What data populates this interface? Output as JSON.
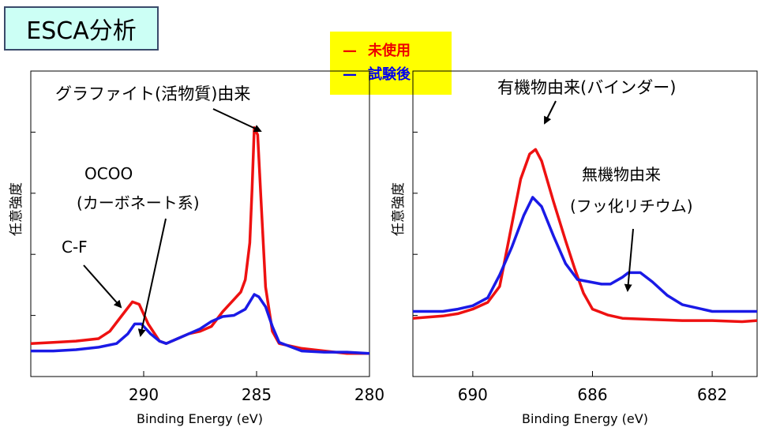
{
  "title": "ESCA分析",
  "legend": [
    {
      "symbol": "—",
      "label": "未使用",
      "color": "#ee0000"
    },
    {
      "symbol": "—",
      "label": "試験後",
      "color": "#0000ee"
    }
  ],
  "colors": {
    "unused": "#ee1111",
    "tested": "#1a1ae6",
    "title_bg": "#ccfff5",
    "legend_bg": "#ffff00"
  },
  "chart_data": [
    {
      "type": "line",
      "xlabel": "Binding Energy (eV)",
      "ylabel": "任意強度",
      "xlim": [
        295,
        280
      ],
      "xticks": [
        290,
        285,
        280
      ],
      "ylim": [
        0,
        100
      ],
      "annotations": [
        "グラファイト(活物質)由来",
        "OCOO",
        "(カーボネート系)",
        "C-F"
      ],
      "series": [
        {
          "name": "未使用",
          "color": "#ee1111",
          "points": [
            [
              295,
              7
            ],
            [
              294,
              7.5
            ],
            [
              293,
              8
            ],
            [
              292,
              9
            ],
            [
              291.5,
              12
            ],
            [
              291,
              18
            ],
            [
              290.5,
              24
            ],
            [
              290.2,
              23
            ],
            [
              289.8,
              15
            ],
            [
              289.3,
              8
            ],
            [
              289,
              7
            ],
            [
              288.5,
              9
            ],
            [
              288,
              11
            ],
            [
              287.5,
              12
            ],
            [
              287,
              14
            ],
            [
              286.5,
              20
            ],
            [
              286,
              25
            ],
            [
              285.7,
              28
            ],
            [
              285.5,
              33
            ],
            [
              285.3,
              48
            ],
            [
              285.2,
              70
            ],
            [
              285.1,
              95
            ],
            [
              284.95,
              92
            ],
            [
              284.8,
              65
            ],
            [
              284.6,
              30
            ],
            [
              284.3,
              12
            ],
            [
              284,
              7
            ],
            [
              283,
              5
            ],
            [
              282,
              4
            ],
            [
              281,
              3
            ],
            [
              280,
              3
            ]
          ]
        },
        {
          "name": "試験後",
          "color": "#1a1ae6",
          "points": [
            [
              295,
              4
            ],
            [
              294,
              4
            ],
            [
              293,
              4.5
            ],
            [
              292,
              5.5
            ],
            [
              291.2,
              7
            ],
            [
              290.7,
              11
            ],
            [
              290.4,
              15
            ],
            [
              290.1,
              15
            ],
            [
              289.7,
              11
            ],
            [
              289.3,
              8
            ],
            [
              289,
              7
            ],
            [
              288.5,
              9
            ],
            [
              288,
              11
            ],
            [
              287.5,
              13
            ],
            [
              287,
              16
            ],
            [
              286.5,
              18
            ],
            [
              286,
              18.5
            ],
            [
              285.5,
              21
            ],
            [
              285.1,
              27
            ],
            [
              284.9,
              26
            ],
            [
              284.6,
              22
            ],
            [
              284.3,
              14
            ],
            [
              284,
              7.5
            ],
            [
              283,
              4
            ],
            [
              282,
              3.5
            ],
            [
              281,
              3.5
            ],
            [
              280,
              3
            ]
          ]
        }
      ]
    },
    {
      "type": "line",
      "xlabel": "Binding Energy (eV)",
      "ylabel": "任意強度",
      "xlim": [
        692,
        680.5
      ],
      "xticks": [
        690,
        686,
        682
      ],
      "ylim": [
        0,
        100
      ],
      "annotations": [
        "有機物由来(バインダー)",
        "無機物由来",
        "(フッ化リチウム)"
      ],
      "series": [
        {
          "name": "未使用",
          "color": "#ee1111",
          "points": [
            [
              692,
              11
            ],
            [
              691,
              12
            ],
            [
              690.5,
              13
            ],
            [
              690,
              15
            ],
            [
              689.5,
              18
            ],
            [
              689.1,
              25
            ],
            [
              688.8,
              45
            ],
            [
              688.4,
              72
            ],
            [
              688.1,
              83
            ],
            [
              687.9,
              85
            ],
            [
              687.7,
              80
            ],
            [
              687.3,
              62
            ],
            [
              686.9,
              45
            ],
            [
              686.6,
              33
            ],
            [
              686.3,
              22
            ],
            [
              686,
              15
            ],
            [
              685.5,
              12.5
            ],
            [
              685,
              11
            ],
            [
              684,
              10.5
            ],
            [
              683,
              10
            ],
            [
              682,
              10
            ],
            [
              681,
              9.5
            ],
            [
              680.5,
              10
            ]
          ]
        },
        {
          "name": "試験後",
          "color": "#1a1ae6",
          "points": [
            [
              692,
              14
            ],
            [
              691,
              14
            ],
            [
              690.5,
              15
            ],
            [
              690,
              16.5
            ],
            [
              689.5,
              20
            ],
            [
              689.1,
              30
            ],
            [
              688.7,
              42
            ],
            [
              688.3,
              56
            ],
            [
              688,
              64
            ],
            [
              687.7,
              60
            ],
            [
              687.3,
              47
            ],
            [
              686.9,
              35
            ],
            [
              686.5,
              28
            ],
            [
              686.1,
              27
            ],
            [
              685.7,
              26
            ],
            [
              685.4,
              26
            ],
            [
              685,
              29
            ],
            [
              684.8,
              31
            ],
            [
              684.4,
              31
            ],
            [
              684,
              27
            ],
            [
              683.5,
              21
            ],
            [
              683,
              17
            ],
            [
              682,
              14
            ],
            [
              681,
              14
            ],
            [
              680.5,
              14
            ]
          ]
        }
      ]
    }
  ]
}
